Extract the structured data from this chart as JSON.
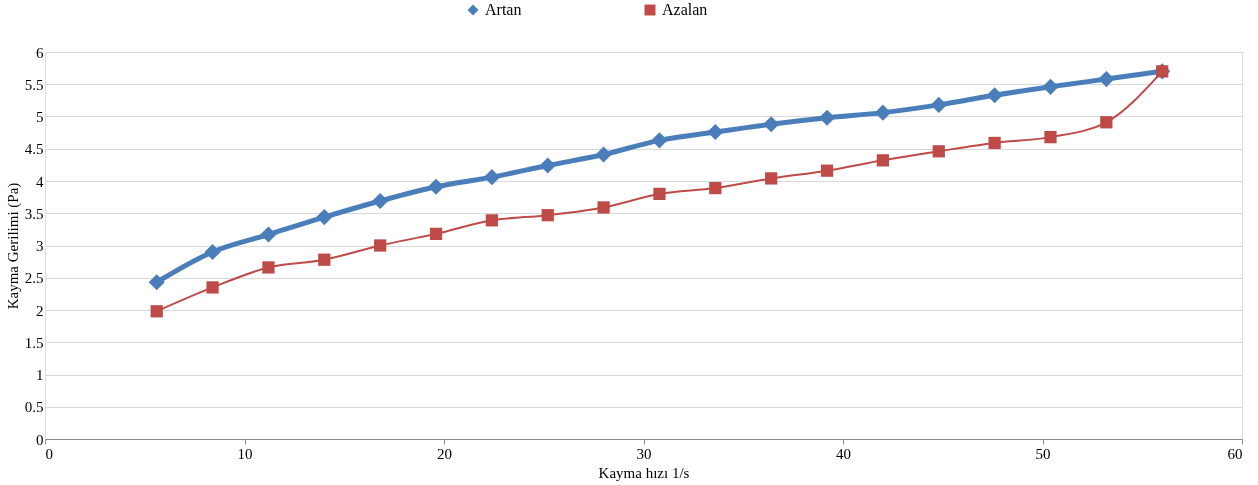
{
  "chart_data": {
    "type": "line",
    "xlabel": "Kayma hızı 1/s",
    "ylabel": "Kayma Gerilimi (Pa)",
    "x": [
      5.6,
      8.4,
      11.2,
      14.0,
      16.8,
      19.6,
      22.4,
      25.2,
      28.0,
      30.8,
      33.6,
      36.4,
      39.2,
      42.0,
      44.8,
      47.6,
      50.4,
      53.2,
      56.0
    ],
    "series": [
      {
        "name": "Artan",
        "color": "#4a7ebb",
        "marker": "diamond",
        "values": [
          2.43,
          2.9,
          3.17,
          3.44,
          3.69,
          3.91,
          4.06,
          4.24,
          4.41,
          4.63,
          4.76,
          4.88,
          4.98,
          5.06,
          5.18,
          5.33,
          5.46,
          5.58,
          5.7
        ]
      },
      {
        "name": "Azalan",
        "color": "#be4b48",
        "marker": "square",
        "values": [
          1.98,
          2.35,
          2.66,
          2.78,
          3.0,
          3.18,
          3.39,
          3.47,
          3.59,
          3.8,
          3.89,
          4.04,
          4.16,
          4.32,
          4.46,
          4.59,
          4.68,
          4.91,
          5.7
        ]
      }
    ],
    "xlim": [
      0,
      60
    ],
    "xticks": [
      0,
      10,
      20,
      30,
      40,
      50,
      60
    ],
    "ylim": [
      0,
      6
    ],
    "yticks": [
      0,
      0.5,
      1,
      1.5,
      2,
      2.5,
      3,
      3.5,
      4,
      4.5,
      5,
      5.5,
      6
    ],
    "grid": "y",
    "legend": "top",
    "line_style": "solid"
  }
}
